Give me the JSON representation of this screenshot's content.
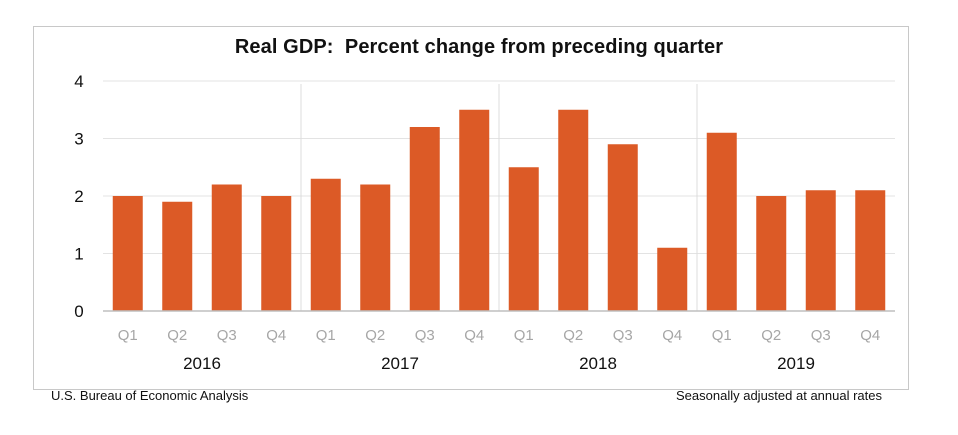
{
  "chart_data": {
    "type": "bar",
    "title": "Real GDP:  Percent change from preceding quarter",
    "xlabel": "",
    "ylabel": "",
    "ylim": [
      0,
      4
    ],
    "yticks": [
      "0",
      "1",
      "2",
      "3",
      "4"
    ],
    "grid": true,
    "legend": "none",
    "bar_color": "#dc5a26",
    "groups": [
      {
        "label": "2016",
        "categories": [
          "Q1",
          "Q2",
          "Q3",
          "Q4"
        ],
        "values": [
          2.0,
          1.9,
          2.2,
          2.0
        ]
      },
      {
        "label": "2017",
        "categories": [
          "Q1",
          "Q2",
          "Q3",
          "Q4"
        ],
        "values": [
          2.3,
          2.2,
          3.2,
          3.5
        ]
      },
      {
        "label": "2018",
        "categories": [
          "Q1",
          "Q2",
          "Q3",
          "Q4"
        ],
        "values": [
          2.5,
          3.5,
          2.9,
          1.1
        ]
      },
      {
        "label": "2019",
        "categories": [
          "Q1",
          "Q2",
          "Q3",
          "Q4"
        ],
        "values": [
          3.1,
          2.0,
          2.1,
          2.1
        ]
      }
    ],
    "source_note": "U.S. Bureau of Economic Analysis",
    "adjustment_note": "Seasonally adjusted at annual rates"
  }
}
